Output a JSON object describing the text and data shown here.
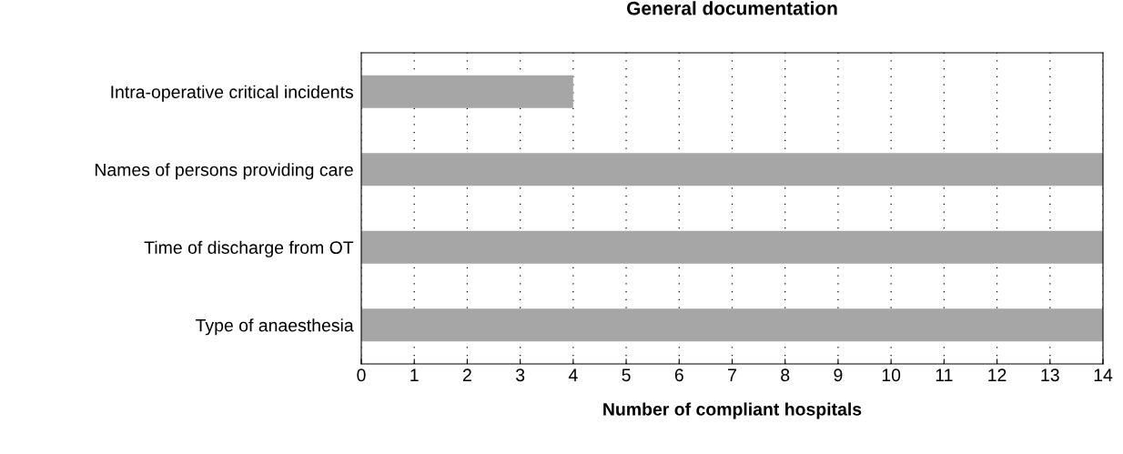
{
  "chart_data": {
    "type": "bar",
    "orientation": "horizontal",
    "title": "General documentation",
    "xlabel": "Number of compliant hospitals",
    "categories": [
      "Intra-operative critical incidents",
      "Names of persons providing care",
      "Time of discharge from OT",
      "Type of anaesthesia"
    ],
    "values": [
      4,
      14,
      14,
      14
    ],
    "color": "#a6a6a6",
    "xlim": [
      0,
      14
    ],
    "xticks": [
      0,
      1,
      2,
      3,
      4,
      5,
      6,
      7,
      8,
      9,
      10,
      11,
      12,
      13,
      14
    ],
    "grid": "x"
  }
}
